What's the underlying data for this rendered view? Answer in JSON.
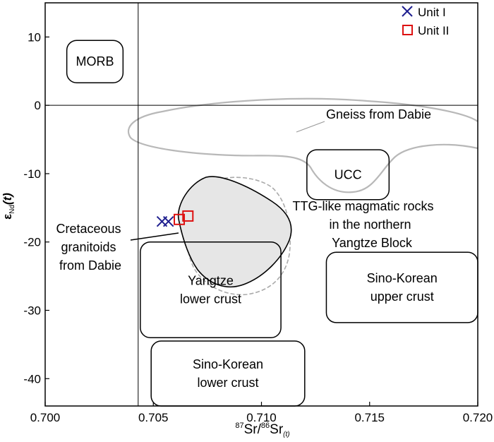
{
  "chart_data": {
    "type": "scatter",
    "xlim": [
      0.7,
      0.72
    ],
    "ylim": [
      -44,
      15
    ],
    "x_ticks": [
      {
        "value": 0.7,
        "label": "0.700"
      },
      {
        "value": 0.705,
        "label": "0.705"
      },
      {
        "value": 0.71,
        "label": "0.710"
      },
      {
        "value": 0.715,
        "label": "0.715"
      },
      {
        "value": 0.72,
        "label": "0.720"
      }
    ],
    "y_ticks": [
      {
        "value": 10,
        "label": "10"
      },
      {
        "value": 0,
        "label": "0"
      },
      {
        "value": -10,
        "label": "-10"
      },
      {
        "value": -20,
        "label": "-20"
      },
      {
        "value": -30,
        "label": "-30"
      },
      {
        "value": -40,
        "label": "-40"
      }
    ],
    "xlabel": {
      "sup": "87",
      "mid": "Sr/",
      "sup2": "86",
      "main": "Sr",
      "sub": "(t)"
    },
    "ylabel": {
      "main": "ε",
      "sub": "Nd",
      "paren": "(t)"
    },
    "reference_lines": {
      "x": 0.7043,
      "y": 0
    },
    "legend": {
      "position": "top-right",
      "entries": [
        {
          "label": "Unit I",
          "marker": "x",
          "color": "#1f1f8f"
        },
        {
          "label": "Unit II",
          "marker": "square",
          "color": "#dd1111"
        }
      ]
    },
    "series": [
      {
        "name": "Unit I",
        "marker": "x",
        "color": "#1f1f8f",
        "points": [
          {
            "x": 0.7054,
            "y": -17.0
          },
          {
            "x": 0.7057,
            "y": -17.0
          }
        ]
      },
      {
        "name": "Unit II",
        "marker": "square",
        "color": "#dd1111",
        "points": [
          {
            "x": 0.7062,
            "y": -16.7
          },
          {
            "x": 0.7066,
            "y": -16.2
          }
        ]
      }
    ],
    "fields": [
      {
        "id": "morb",
        "lines": [
          "MORB"
        ],
        "x0": 0.701,
        "x1": 0.7036,
        "y0": 3.3,
        "y1": 9.5
      },
      {
        "id": "ucc",
        "lines": [
          "UCC"
        ],
        "x0": 0.7121,
        "x1": 0.7159,
        "y0": -13.8,
        "y1": -6.5
      },
      {
        "id": "sino-korean-upper",
        "lines": [
          "Sino-Korean",
          "upper crust"
        ],
        "x0": 0.713,
        "x1": 0.72,
        "y0": -31.8,
        "y1": -21.5
      },
      {
        "id": "yangtze-lower",
        "lines": [
          "Yangtze",
          "lower crust"
        ],
        "x0": 0.7044,
        "x1": 0.7109,
        "y0": -34.0,
        "y1": -20.0
      },
      {
        "id": "sino-korean-lower",
        "lines": [
          "Sino-Korean",
          "lower crust"
        ],
        "x0": 0.7049,
        "x1": 0.712,
        "y0": -44.0,
        "y1": -34.5
      }
    ],
    "annotations": [
      {
        "id": "gneiss",
        "lines": [
          "Gneiss from Dabie"
        ]
      },
      {
        "id": "ttg",
        "lines": [
          "TTG-like magmatic rocks",
          "in the northern",
          "Yangtze Block"
        ]
      },
      {
        "id": "cretaceous",
        "lines": [
          "Cretaceous",
          "granitoids",
          "from Dabie"
        ]
      }
    ]
  }
}
